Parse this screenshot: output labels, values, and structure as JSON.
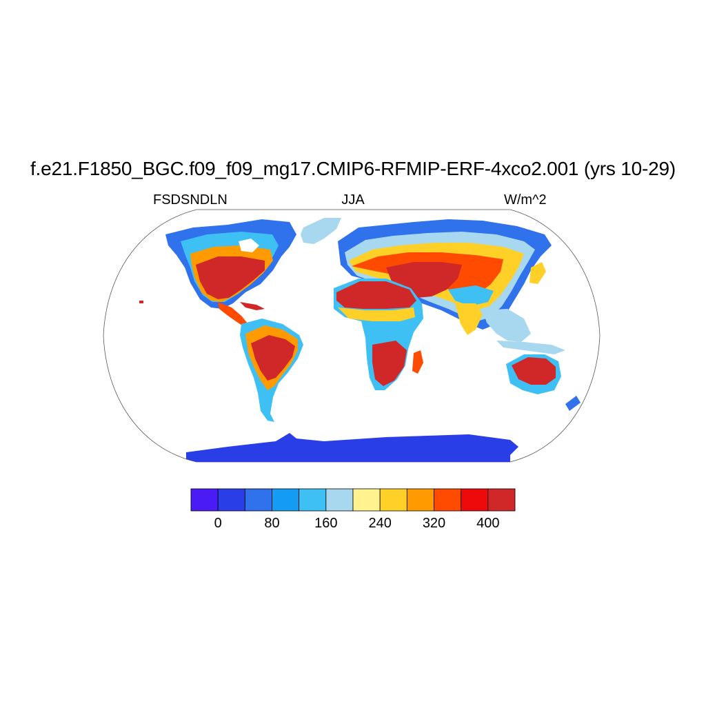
{
  "title": "f.e21.F1850_BGC.f09_f09_mg17.CMIP6-RFMIP-ERF-4xco2.001 (yrs 10-29)",
  "subtitle_left": "FSDSNDLN",
  "subtitle_center": "JJA",
  "subtitle_right": "W/m^2",
  "colorbar": {
    "colors": [
      "#4a1bf5",
      "#2a3ee8",
      "#2f72ec",
      "#149cf5",
      "#3fc0f5",
      "#a8d8f0",
      "#fff28f",
      "#ffd027",
      "#ff9b00",
      "#ff4b00",
      "#ee0a0a",
      "#d02828"
    ],
    "tick_labels": [
      "0",
      "80",
      "160",
      "240",
      "320",
      "400"
    ]
  }
}
